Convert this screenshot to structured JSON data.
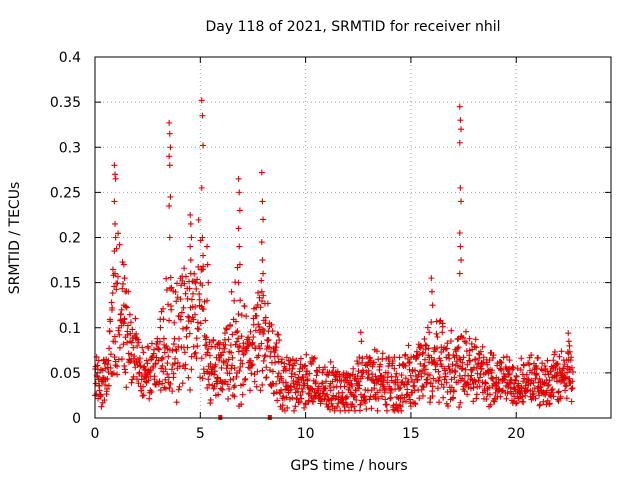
{
  "chart_data": {
    "type": "scatter",
    "title": "Day 118 of 2021, SRMTID for receiver nhil",
    "xlabel": "GPS time / hours",
    "ylabel": "SRMTID / TECUs",
    "xlim": [
      0,
      24.5
    ],
    "ylim": [
      0,
      0.4
    ],
    "x_ticks": [
      0,
      5,
      10,
      15,
      20
    ],
    "x_tick_labels": [
      "0",
      "5",
      "10",
      "15",
      "20"
    ],
    "y_ticks": [
      0,
      0.05,
      0.1,
      0.15,
      0.2,
      0.25,
      0.3,
      0.35,
      0.4
    ],
    "y_tick_labels": [
      "0",
      "0.05",
      "0.1",
      "0.15",
      "0.2",
      "0.25",
      "0.3",
      "0.35",
      "0.4"
    ],
    "grid": true,
    "marker": "plus",
    "marker_color": "#e00000",
    "data_extent_hours": [
      0,
      22.7
    ],
    "zero_markers_x": [
      5.95,
      8.3
    ],
    "envelope": [
      {
        "t": 0.0,
        "base": 0.045,
        "spread": 0.035
      },
      {
        "t": 0.5,
        "base": 0.04,
        "spread": 0.03
      },
      {
        "t": 0.8,
        "base": 0.09,
        "spread": 0.06
      },
      {
        "t": 1.0,
        "base": 0.11,
        "spread": 0.1
      },
      {
        "t": 1.3,
        "base": 0.1,
        "spread": 0.07
      },
      {
        "t": 1.8,
        "base": 0.075,
        "spread": 0.04
      },
      {
        "t": 2.3,
        "base": 0.05,
        "spread": 0.03
      },
      {
        "t": 3.0,
        "base": 0.06,
        "spread": 0.03
      },
      {
        "t": 3.5,
        "base": 0.09,
        "spread": 0.08
      },
      {
        "t": 4.0,
        "base": 0.1,
        "spread": 0.07
      },
      {
        "t": 4.5,
        "base": 0.12,
        "spread": 0.08
      },
      {
        "t": 5.0,
        "base": 0.12,
        "spread": 0.09
      },
      {
        "t": 5.4,
        "base": 0.06,
        "spread": 0.04
      },
      {
        "t": 6.0,
        "base": 0.05,
        "spread": 0.03
      },
      {
        "t": 6.8,
        "base": 0.09,
        "spread": 0.08
      },
      {
        "t": 7.3,
        "base": 0.06,
        "spread": 0.04
      },
      {
        "t": 7.9,
        "base": 0.1,
        "spread": 0.06
      },
      {
        "t": 8.5,
        "base": 0.06,
        "spread": 0.04
      },
      {
        "t": 9.0,
        "base": 0.04,
        "spread": 0.03
      },
      {
        "t": 10.0,
        "base": 0.04,
        "spread": 0.03
      },
      {
        "t": 11.0,
        "base": 0.035,
        "spread": 0.025
      },
      {
        "t": 12.0,
        "base": 0.03,
        "spread": 0.025
      },
      {
        "t": 13.0,
        "base": 0.045,
        "spread": 0.035
      },
      {
        "t": 14.5,
        "base": 0.035,
        "spread": 0.03
      },
      {
        "t": 15.5,
        "base": 0.055,
        "spread": 0.04
      },
      {
        "t": 16.3,
        "base": 0.07,
        "spread": 0.05
      },
      {
        "t": 17.0,
        "base": 0.05,
        "spread": 0.04
      },
      {
        "t": 17.5,
        "base": 0.07,
        "spread": 0.05
      },
      {
        "t": 18.5,
        "base": 0.045,
        "spread": 0.03
      },
      {
        "t": 20.0,
        "base": 0.04,
        "spread": 0.025
      },
      {
        "t": 21.5,
        "base": 0.04,
        "spread": 0.025
      },
      {
        "t": 22.7,
        "base": 0.05,
        "spread": 0.035
      }
    ],
    "spikes": [
      {
        "x": 0.95,
        "values": [
          0.28,
          0.27,
          0.265,
          0.24,
          0.215,
          0.2,
          0.185,
          0.16
        ]
      },
      {
        "x": 1.4,
        "values": [
          0.17,
          0.155,
          0.14,
          0.125,
          0.11
        ]
      },
      {
        "x": 3.55,
        "values": [
          0.327,
          0.315,
          0.3,
          0.29,
          0.28,
          0.245,
          0.235,
          0.2
        ]
      },
      {
        "x": 4.55,
        "values": [
          0.225,
          0.215,
          0.2,
          0.19,
          0.175
        ]
      },
      {
        "x": 5.1,
        "values": [
          0.352,
          0.335,
          0.302,
          0.255,
          0.2,
          0.18,
          0.165
        ]
      },
      {
        "x": 5.35,
        "values": [
          0.19,
          0.17,
          0.15,
          0.13
        ]
      },
      {
        "x": 6.85,
        "values": [
          0.265,
          0.25,
          0.23,
          0.21,
          0.19,
          0.17,
          0.15
        ]
      },
      {
        "x": 7.95,
        "values": [
          0.272,
          0.24,
          0.22,
          0.195,
          0.175,
          0.16,
          0.14
        ]
      },
      {
        "x": 12.65,
        "values": [
          0.095,
          0.085
        ]
      },
      {
        "x": 16.0,
        "values": [
          0.155,
          0.14,
          0.125
        ]
      },
      {
        "x": 17.35,
        "values": [
          0.345,
          0.33,
          0.32,
          0.305,
          0.255,
          0.24,
          0.205,
          0.19,
          0.175,
          0.16
        ]
      },
      {
        "x": 22.5,
        "values": [
          0.094,
          0.085,
          0.08
        ]
      }
    ]
  }
}
